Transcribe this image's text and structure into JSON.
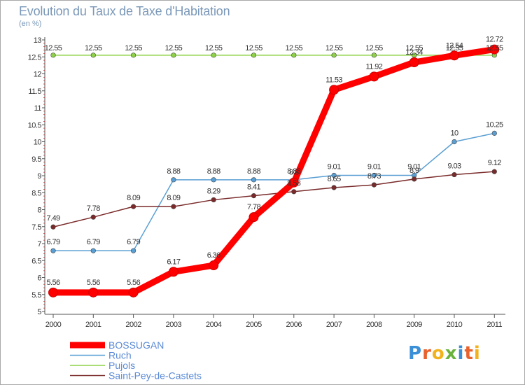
{
  "title": "Evolution du Taux de Taxe d'Habitation",
  "unit": "(en %)",
  "logo": {
    "letters": [
      "P",
      "r",
      "o",
      "x",
      "i",
      "t",
      "i"
    ],
    "colors": [
      "#3a8fd6",
      "#e8622c",
      "#f2b21c",
      "#6ab23c",
      "#3a8fd6",
      "#e8622c",
      "#f2b21c"
    ]
  },
  "chart_data": {
    "type": "line",
    "title": "Evolution du Taux de Taxe d'Habitation",
    "ylabel": "(en %)",
    "x": [
      "2000",
      "2001",
      "2002",
      "2003",
      "2004",
      "2005",
      "2006",
      "2007",
      "2008",
      "2009",
      "2010",
      "2011"
    ],
    "ylim": [
      5,
      13
    ],
    "yticks": [
      "5",
      "5.5",
      "6",
      "6.5",
      "7",
      "7.5",
      "8",
      "8.5",
      "9",
      "9.5",
      "10",
      "10.5",
      "11",
      "11.5",
      "12",
      "12.5",
      "13"
    ],
    "grid": false,
    "legend": "bottom-left",
    "series": [
      {
        "name": "BOSSUGAN",
        "color": "#ff0000",
        "values": [
          5.56,
          5.56,
          5.56,
          6.17,
          6.36,
          7.78,
          8.8,
          11.53,
          11.92,
          12.34,
          12.54,
          12.72
        ],
        "labels": [
          "5.56",
          "5.56",
          "5.56",
          "6.17",
          "6.36",
          "7.78",
          "8.8",
          "11.53",
          "11.92",
          "12.34",
          "12.54",
          "12.72"
        ]
      },
      {
        "name": "Ruch",
        "color": "#5a9fd4",
        "values": [
          6.79,
          6.79,
          6.79,
          8.88,
          8.88,
          8.88,
          8.88,
          9.01,
          9.01,
          9.01,
          10,
          10.25
        ],
        "labels": [
          "6.79",
          "6.79",
          "6.79",
          "8.88",
          "8.88",
          "8.88",
          "8.88",
          "9.01",
          "9.01",
          "9.01",
          "10",
          "10.25"
        ]
      },
      {
        "name": "Pujols",
        "color": "#8fd24a",
        "values": [
          12.55,
          12.55,
          12.55,
          12.55,
          12.55,
          12.55,
          12.55,
          12.55,
          12.55,
          12.55,
          12.55,
          12.55
        ],
        "labels": [
          "12.55",
          "12.55",
          "12.55",
          "12.55",
          "12.55",
          "12.55",
          "12.55",
          "12.55",
          "12.55",
          "12.55",
          "12.55",
          "12.55"
        ]
      },
      {
        "name": "Saint-Pey-de-Castets",
        "color": "#7a2a2a",
        "values": [
          7.49,
          7.78,
          8.09,
          8.09,
          8.29,
          8.41,
          8.53,
          8.65,
          8.73,
          8.9,
          9.03,
          9.12
        ],
        "labels": [
          "7.49",
          "7.78",
          "8.09",
          "8.09",
          "8.29",
          "8.41",
          "8.53",
          "8.65",
          "8.73",
          "8.9",
          "9.03",
          "9.12"
        ]
      }
    ]
  }
}
